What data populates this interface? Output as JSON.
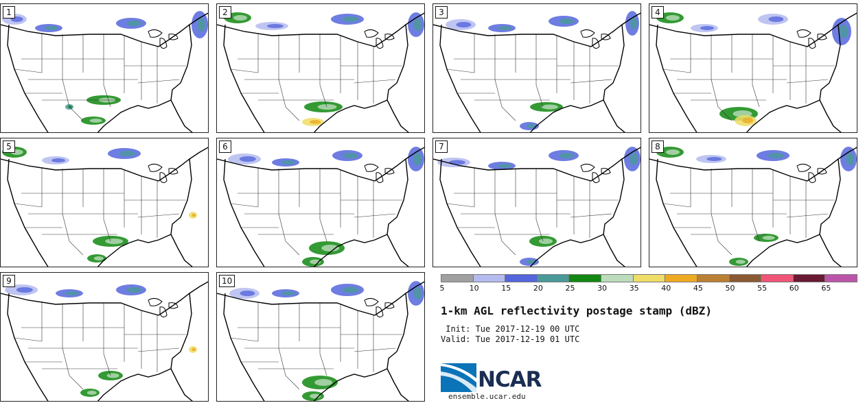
{
  "panels": [
    {
      "label": "1"
    },
    {
      "label": "2"
    },
    {
      "label": "3"
    },
    {
      "label": "4"
    },
    {
      "label": "5"
    },
    {
      "label": "6"
    },
    {
      "label": "7"
    },
    {
      "label": "8"
    },
    {
      "label": "9"
    },
    {
      "label": "10"
    }
  ],
  "colorbar": {
    "colors": [
      "#a0a0a0",
      "#b4bbee",
      "#5566dd",
      "#4a9a9a",
      "#118811",
      "#bcdcbc",
      "#eedd66",
      "#eeaa22",
      "#bb8033",
      "#8a5a33",
      "#ee5577",
      "#6a1a33",
      "#bb55aa"
    ],
    "ticks": [
      "5",
      "10",
      "15",
      "20",
      "25",
      "30",
      "35",
      "40",
      "45",
      "50",
      "55",
      "60",
      "65"
    ]
  },
  "title": "1-km AGL reflectivity postage stamp (dBZ)",
  "init_line": " Init: Tue 2017-12-19 00 UTC",
  "valid_line": "Valid: Tue 2017-12-19 01 UTC",
  "logo": {
    "name": "NCAR",
    "url": "ensemble.ucar.edu"
  }
}
